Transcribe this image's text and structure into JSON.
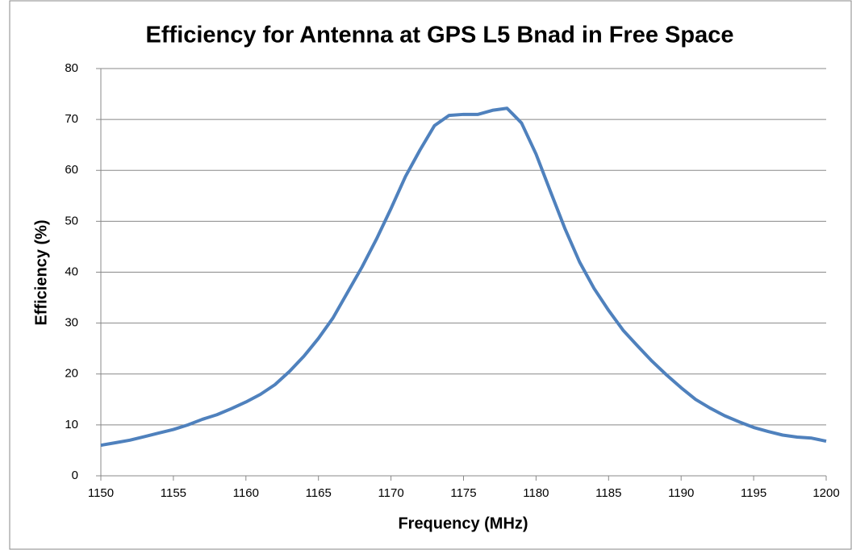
{
  "chart_data": {
    "type": "line",
    "title": "Efficiency for Antenna at GPS L5 Bnad in Free Space",
    "xlabel": "Frequency  (MHz)",
    "ylabel": "Efficiency (%)",
    "x": [
      1150,
      1151,
      1152,
      1153,
      1154,
      1155,
      1156,
      1157,
      1158,
      1159,
      1160,
      1161,
      1162,
      1163,
      1164,
      1165,
      1166,
      1167,
      1168,
      1169,
      1170,
      1171,
      1172,
      1173,
      1174,
      1175,
      1176,
      1177,
      1178,
      1179,
      1180,
      1181,
      1182,
      1183,
      1184,
      1185,
      1186,
      1187,
      1188,
      1189,
      1190,
      1191,
      1192,
      1193,
      1194,
      1195,
      1196,
      1197,
      1198,
      1199,
      1200
    ],
    "series": [
      {
        "name": "Efficiency",
        "color": "#4f81bd",
        "values": [
          6,
          6.5,
          7,
          7.7,
          8.4,
          9.1,
          10,
          11.1,
          12,
          13.2,
          14.5,
          16,
          17.9,
          20.5,
          23.5,
          27,
          31,
          36,
          41,
          46.5,
          52.5,
          58.8,
          64,
          68.8,
          70.8,
          71,
          71,
          71.8,
          72.2,
          69.3,
          63.2,
          55.8,
          48.5,
          42,
          36.8,
          32.5,
          28.6,
          25.5,
          22.5,
          19.8,
          17.3,
          15,
          13.3,
          11.8,
          10.6,
          9.5,
          8.7,
          8,
          7.6,
          7.4,
          6.8
        ]
      }
    ],
    "xlim": [
      1150,
      1200
    ],
    "xticks": [
      1150,
      1155,
      1160,
      1165,
      1170,
      1175,
      1180,
      1185,
      1190,
      1195,
      1200
    ],
    "ylim": [
      0,
      80
    ],
    "yticks": [
      0,
      10,
      20,
      30,
      40,
      50,
      60,
      70,
      80
    ],
    "grid": true
  }
}
